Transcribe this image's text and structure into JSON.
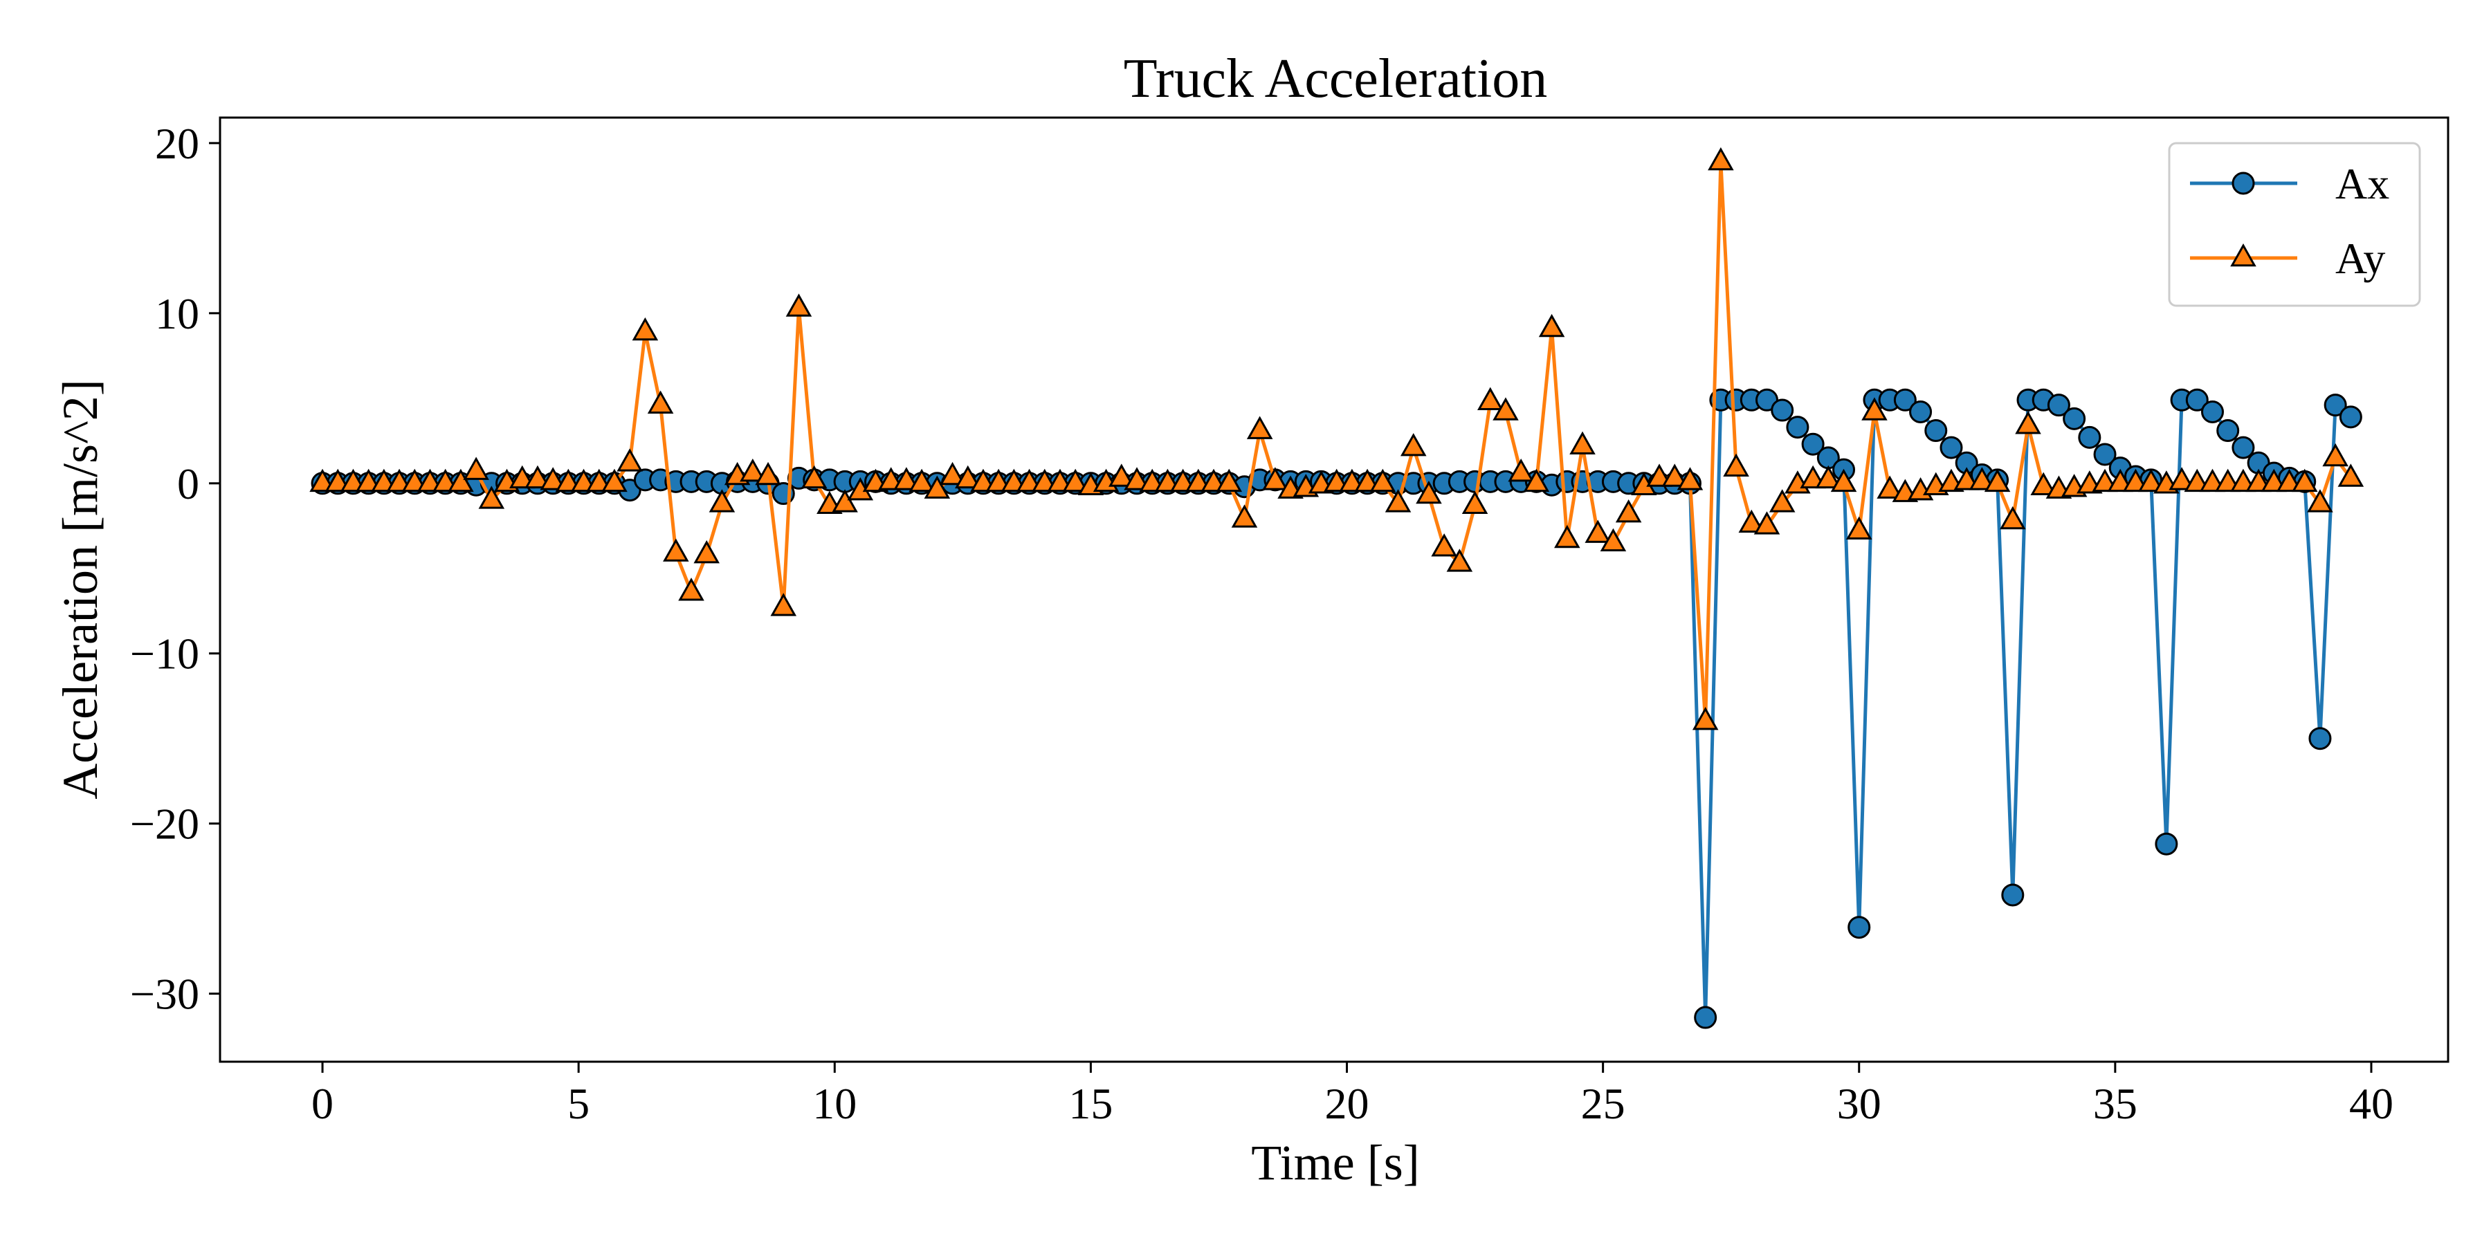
{
  "chart_data": {
    "type": "line",
    "title": "Truck Acceleration",
    "xlabel": "Time [s]",
    "ylabel": "Acceleration [m/s^2]",
    "xlim": [
      -2,
      41.5
    ],
    "ylim": [
      -34,
      21.5
    ],
    "xticks": [
      0,
      5,
      10,
      15,
      20,
      25,
      30,
      35,
      40
    ],
    "xtick_labels": [
      "0",
      "5",
      "10",
      "15",
      "20",
      "25",
      "30",
      "35",
      "40"
    ],
    "yticks": [
      20,
      10,
      0,
      -10,
      -20,
      -30
    ],
    "ytick_labels": [
      "20",
      "10",
      "0",
      "−10",
      "−20",
      "−30"
    ],
    "grid": false,
    "legend_position": "top-right",
    "series": [
      {
        "name": "Ax",
        "color": "#1f77b4",
        "marker": "circle",
        "x": [
          0,
          0.3,
          0.6,
          0.9,
          1.2,
          1.5,
          1.8,
          2.1,
          2.4,
          2.7,
          3.0,
          3.3,
          3.6,
          3.9,
          4.2,
          4.5,
          4.8,
          5.1,
          5.4,
          5.7,
          6.0,
          6.3,
          6.6,
          6.9,
          7.2,
          7.5,
          7.8,
          8.1,
          8.4,
          8.7,
          9.0,
          9.3,
          9.6,
          9.9,
          10.2,
          10.5,
          10.8,
          11.1,
          11.4,
          11.7,
          12.0,
          12.3,
          12.6,
          12.9,
          13.2,
          13.5,
          13.8,
          14.1,
          14.4,
          14.7,
          15.0,
          15.3,
          15.6,
          15.9,
          16.2,
          16.5,
          16.8,
          17.1,
          17.4,
          17.7,
          18.0,
          18.3,
          18.6,
          18.9,
          19.2,
          19.5,
          19.8,
          20.1,
          20.4,
          20.7,
          21.0,
          21.3,
          21.6,
          21.9,
          22.2,
          22.5,
          22.8,
          23.1,
          23.4,
          23.7,
          24.0,
          24.3,
          24.6,
          24.9,
          25.2,
          25.5,
          25.8,
          26.1,
          26.4,
          26.7,
          27.0,
          27.3,
          27.6,
          27.9,
          28.2,
          28.5,
          28.8,
          29.1,
          29.4,
          29.7,
          30.0,
          30.3,
          30.6,
          30.9,
          31.2,
          31.5,
          31.8,
          32.1,
          32.4,
          32.7,
          33.0,
          33.3,
          33.6,
          33.9,
          34.2,
          34.5,
          34.8,
          35.1,
          35.4,
          35.7,
          36.0,
          36.3,
          36.6,
          36.9,
          37.2,
          37.5,
          37.8,
          38.1,
          38.4,
          38.7,
          39.0,
          39.3,
          39.6
        ],
        "y": [
          0.0,
          0.0,
          0.0,
          0.0,
          0.0,
          0.0,
          0.0,
          0.0,
          0.0,
          0.0,
          -0.1,
          0.0,
          0.0,
          0.0,
          0.0,
          0.0,
          0.0,
          0.0,
          0.0,
          0.0,
          -0.4,
          0.2,
          0.2,
          0.1,
          0.1,
          0.1,
          0.0,
          0.1,
          0.1,
          0.0,
          -0.6,
          0.3,
          0.2,
          0.2,
          0.1,
          0.1,
          0.1,
          0.0,
          0.0,
          0.0,
          0.0,
          0.0,
          0.0,
          0.0,
          0.0,
          0.0,
          0.0,
          0.0,
          0.0,
          0.0,
          0.0,
          0.0,
          0.0,
          0.0,
          0.0,
          0.0,
          0.0,
          0.0,
          0.0,
          0.0,
          -0.2,
          0.2,
          0.2,
          0.1,
          0.1,
          0.1,
          0.0,
          0.0,
          0.0,
          0.0,
          0.0,
          0.0,
          0.0,
          0.0,
          0.1,
          0.1,
          0.1,
          0.1,
          0.1,
          0.1,
          -0.1,
          0.1,
          0.1,
          0.1,
          0.1,
          0.0,
          0.0,
          0.0,
          0.0,
          0.0,
          -31.4,
          4.9,
          4.9,
          4.9,
          4.9,
          4.3,
          3.3,
          2.3,
          1.5,
          0.8,
          -26.1,
          4.9,
          4.9,
          4.9,
          4.2,
          3.1,
          2.1,
          1.2,
          0.5,
          0.2,
          -24.2,
          4.9,
          4.9,
          4.6,
          3.8,
          2.7,
          1.7,
          0.9,
          0.4,
          0.2,
          -21.2,
          4.9,
          4.9,
          4.2,
          3.1,
          2.1,
          1.2,
          0.6,
          0.3,
          0.1,
          -15.0,
          4.6,
          3.9
        ]
      },
      {
        "name": "Ay",
        "color": "#ff7f0e",
        "marker": "triangle",
        "x": [
          0,
          0.3,
          0.6,
          0.9,
          1.2,
          1.5,
          1.8,
          2.1,
          2.4,
          2.7,
          3.0,
          3.3,
          3.6,
          3.9,
          4.2,
          4.5,
          4.8,
          5.1,
          5.4,
          5.7,
          6.0,
          6.3,
          6.6,
          6.9,
          7.2,
          7.5,
          7.8,
          8.1,
          8.4,
          8.7,
          9.0,
          9.3,
          9.6,
          9.9,
          10.2,
          10.5,
          10.8,
          11.1,
          11.4,
          11.7,
          12.0,
          12.3,
          12.6,
          12.9,
          13.2,
          13.5,
          13.8,
          14.1,
          14.4,
          14.7,
          15.0,
          15.3,
          15.6,
          15.9,
          16.2,
          16.5,
          16.8,
          17.1,
          17.4,
          17.7,
          18.0,
          18.3,
          18.6,
          18.9,
          19.2,
          19.5,
          19.8,
          20.1,
          20.4,
          20.7,
          21.0,
          21.3,
          21.6,
          21.9,
          22.2,
          22.5,
          22.8,
          23.1,
          23.4,
          23.7,
          24.0,
          24.3,
          24.6,
          24.9,
          25.2,
          25.5,
          25.8,
          26.1,
          26.4,
          26.7,
          27.0,
          27.3,
          27.6,
          27.9,
          28.2,
          28.5,
          28.8,
          29.1,
          29.4,
          29.7,
          30.0,
          30.3,
          30.6,
          30.9,
          31.2,
          31.5,
          31.8,
          32.1,
          32.4,
          32.7,
          33.0,
          33.3,
          33.6,
          33.9,
          34.2,
          34.5,
          34.8,
          35.1,
          35.4,
          35.7,
          36.0,
          36.3,
          36.6,
          36.9,
          37.2,
          37.5,
          37.8,
          38.1,
          38.4,
          38.7,
          39.0,
          39.3,
          39.6
        ],
        "y": [
          0.0,
          0.0,
          0.0,
          0.0,
          0.0,
          0.0,
          0.0,
          0.0,
          0.0,
          0.0,
          0.7,
          -1.0,
          0.0,
          0.2,
          0.2,
          0.1,
          0.0,
          0.0,
          0.0,
          0.0,
          1.2,
          8.9,
          4.6,
          -4.1,
          -6.4,
          -4.2,
          -1.2,
          0.4,
          0.6,
          0.4,
          -7.3,
          10.3,
          0.2,
          -1.3,
          -1.2,
          -0.5,
          0.0,
          0.1,
          0.1,
          0.0,
          -0.4,
          0.4,
          0.2,
          0.0,
          0.0,
          0.0,
          0.0,
          0.0,
          0.0,
          0.0,
          -0.2,
          0.0,
          0.3,
          0.1,
          0.0,
          0.0,
          0.0,
          0.0,
          0.0,
          0.0,
          -2.1,
          3.1,
          0.1,
          -0.4,
          -0.3,
          -0.1,
          0.0,
          0.0,
          0.0,
          0.0,
          -1.2,
          2.1,
          -0.7,
          -3.8,
          -4.7,
          -1.3,
          4.8,
          4.2,
          0.6,
          0.0,
          9.1,
          -3.3,
          2.2,
          -3.0,
          -3.5,
          -1.8,
          -0.2,
          0.3,
          0.3,
          0.1,
          -14.0,
          18.9,
          0.9,
          -2.4,
          -2.5,
          -1.2,
          -0.1,
          0.2,
          0.2,
          0.0,
          -2.8,
          4.2,
          -0.4,
          -0.6,
          -0.5,
          -0.2,
          0.0,
          0.1,
          0.1,
          0.0,
          -2.2,
          3.4,
          -0.2,
          -0.4,
          -0.3,
          -0.1,
          0.0,
          0.0,
          0.0,
          0.0,
          -0.1,
          0.1,
          0.0,
          0.0,
          0.0,
          0.0,
          0.0,
          0.0,
          0.0,
          0.0,
          -1.2,
          1.5,
          0.3
        ]
      }
    ]
  }
}
